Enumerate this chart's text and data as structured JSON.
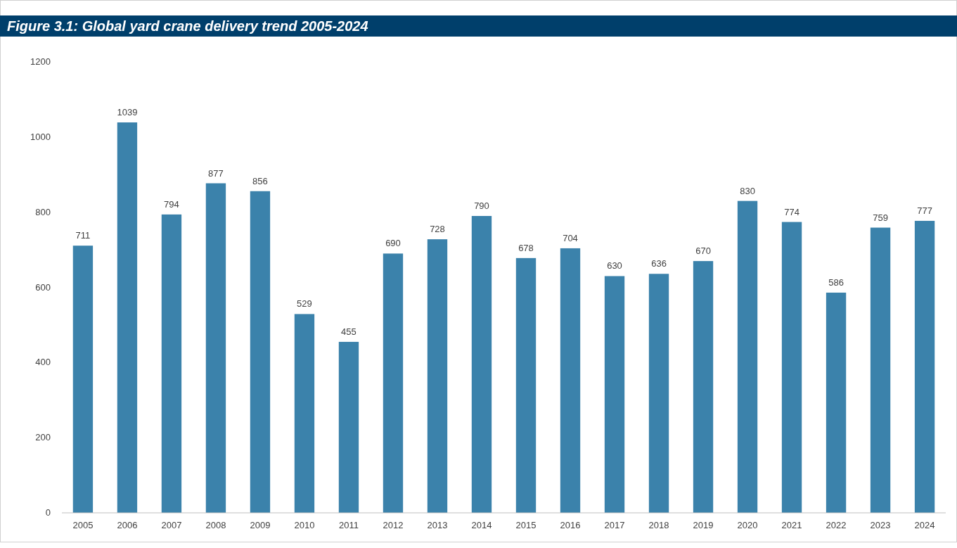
{
  "chart_data": {
    "type": "bar",
    "title": "Figure 3.1: Global yard crane delivery trend 2005-2024",
    "categories": [
      "2005",
      "2006",
      "2007",
      "2008",
      "2009",
      "2010",
      "2011",
      "2012",
      "2013",
      "2014",
      "2015",
      "2016",
      "2017",
      "2018",
      "2019",
      "2020",
      "2021",
      "2022",
      "2023",
      "2024"
    ],
    "values": [
      711,
      1039,
      794,
      877,
      856,
      529,
      455,
      690,
      728,
      790,
      678,
      704,
      630,
      636,
      670,
      830,
      774,
      586,
      759,
      777
    ],
    "color": "#3b82ab",
    "ylim": [
      0,
      1200
    ],
    "yticks": [
      0,
      200,
      400,
      600,
      800,
      1000,
      1200
    ],
    "grid": false,
    "data_labels": true
  }
}
